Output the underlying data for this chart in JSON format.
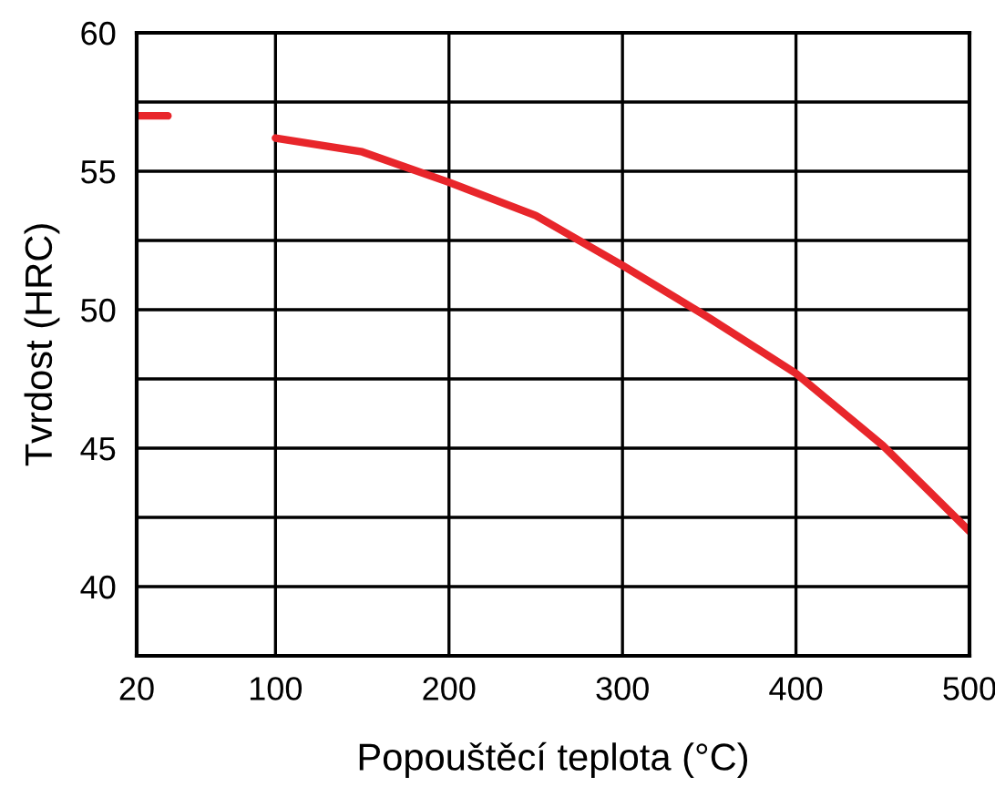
{
  "chart_data": {
    "type": "line",
    "xlabel": "Popouštěcí teplota (°C)",
    "ylabel": "Tvrdost (HRC)",
    "xlim": [
      20,
      500
    ],
    "xticks": [
      20,
      100,
      200,
      300,
      400,
      500
    ],
    "ylim": [
      37.5,
      60
    ],
    "yticks": [
      {
        "value": 37.5,
        "label": null
      },
      40,
      {
        "value": 42.5,
        "label": null
      },
      45,
      {
        "value": 47.5,
        "label": null
      },
      50,
      {
        "value": 52.5,
        "label": null
      },
      55,
      {
        "value": 57.5,
        "label": null
      },
      60
    ],
    "grid": true,
    "marker": "none",
    "line_style": "solid",
    "series": [
      {
        "color": "#e8262b",
        "x": [
          20,
          38
        ],
        "values": [
          57.0,
          57.0
        ]
      },
      {
        "color": "#e8262b",
        "x": [
          100,
          150,
          200,
          250,
          300,
          350,
          400,
          450,
          500
        ],
        "values": [
          56.2,
          55.7,
          54.6,
          53.4,
          51.6,
          49.7,
          47.7,
          45.1,
          42.0
        ]
      }
    ]
  }
}
